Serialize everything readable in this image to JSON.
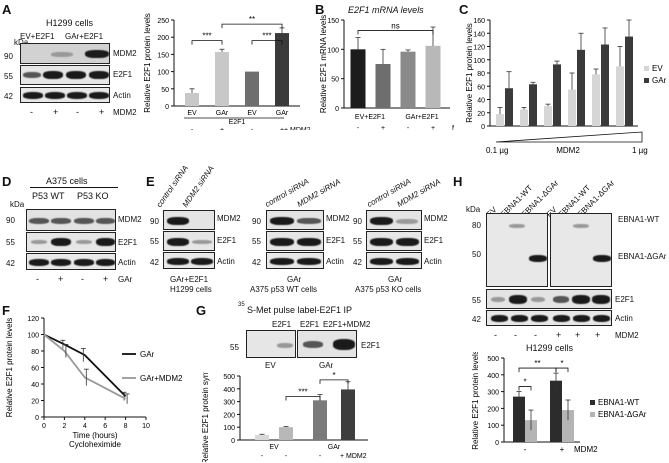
{
  "panels": {
    "A": {
      "letter": "A",
      "kda_unit": "kDa",
      "cell_line": "H1299 cells",
      "lane_groups": [
        "EV+E2F1",
        "GAr+E2F1"
      ],
      "kda_marks": [
        "90",
        "55",
        "42"
      ],
      "band_labels": [
        "MDM2",
        "E2F1",
        "Actin"
      ],
      "lane_signs": [
        "-",
        "+",
        "-",
        "+"
      ],
      "mdm2_label": "MDM2",
      "chart": {
        "ylabel": "Relative E2F1 protein levels",
        "yticks": [
          "0",
          "50",
          "100",
          "150",
          "200",
          "250"
        ],
        "categories": [
          "EV",
          "GAr",
          "EV",
          "GAr"
        ],
        "e2f1_label": "E2F1",
        "signs": [
          "-",
          "+",
          "-",
          "+"
        ],
        "mdm2": "+ MDM2",
        "sig": [
          "***",
          "***",
          "**"
        ]
      }
    },
    "B": {
      "letter": "B",
      "title": "E2F1 mRNA levels",
      "ylabel": "Relative E2F1 mRNA levels",
      "yticks": [
        "0",
        "50",
        "100",
        "150"
      ],
      "groups": [
        "EV+E2F1",
        "GAr+E2F1"
      ],
      "signs": [
        "-",
        "+",
        "-",
        "+"
      ],
      "mdm2": "MDM2",
      "sig": "ns"
    },
    "C": {
      "letter": "C",
      "ylabel": "Relative E2F1 protein levels",
      "yticks": [
        "0",
        "20",
        "40",
        "60",
        "80",
        "100",
        "120",
        "140",
        "160"
      ],
      "legend": [
        "EV",
        "GAr"
      ],
      "x_left": "0.1 µg",
      "x_mid": "MDM2",
      "x_right": "1 µg"
    },
    "D": {
      "letter": "D",
      "kda_unit": "kDa",
      "cell_line": "A375 cells",
      "groups": [
        "P53 WT",
        "P53 KO"
      ],
      "kda_marks": [
        "90",
        "55",
        "42"
      ],
      "band_labels": [
        "MDM2",
        "E2F1",
        "Actin"
      ],
      "signs": [
        "-",
        "+",
        "-",
        "+"
      ],
      "gar": "GAr"
    },
    "E": {
      "letter": "E",
      "blots": [
        {
          "lanes": [
            "control siRNA",
            "MDM2 siRNA"
          ],
          "caption": [
            "GAr+E2F1",
            "H1299 cells"
          ]
        },
        {
          "lanes": [
            "control siRNA",
            "MDM2 siRNA"
          ],
          "caption": [
            "GAr",
            "A375 p53 WT cells"
          ]
        },
        {
          "lanes": [
            "control siRNA",
            "MDM2 siRNA"
          ],
          "caption": [
            "GAr",
            "A375 p53 KO cells"
          ]
        }
      ],
      "kda_marks": [
        "90",
        "55",
        "42"
      ],
      "band_labels": [
        "MDM2",
        "E2F1",
        "Actin"
      ]
    },
    "F": {
      "letter": "F",
      "ylabel": "Relative E2F1 protein levels",
      "xlabel": "Time (hours)",
      "xsub": "Cycloheximide",
      "yticks": [
        "0",
        "20",
        "40",
        "60",
        "80",
        "100",
        "120"
      ],
      "xticks": [
        "0",
        "2",
        "4",
        "6",
        "8",
        "10"
      ],
      "legend": [
        "GAr",
        "GAr+MDM2"
      ]
    },
    "G": {
      "letter": "G",
      "title_sup": "35",
      "title": "S-Met pulse label-E2F1 IP",
      "lanes": [
        "E2F1",
        "E2F1",
        "E2F1+MDM2"
      ],
      "kda": "55",
      "band": "E2F1",
      "groups": [
        "EV",
        "GAr"
      ],
      "chart": {
        "ylabel": "Relative E2F1 protein synthesis",
        "yticks": [
          "0",
          "100",
          "200",
          "300",
          "400",
          "500"
        ],
        "groups": [
          "EV",
          "GAr"
        ],
        "signs": [
          "-",
          "-",
          "-"
        ],
        "mdm2": "+ MDM2",
        "sig": [
          "***",
          "*"
        ]
      }
    },
    "H": {
      "letter": "H",
      "kda_unit": "kDa",
      "lanes": [
        "EV",
        "EBNA1-WT",
        "EBNA1-ΔGAr",
        "EV",
        "EBNA1-WT",
        "EBNA1-ΔGAr"
      ],
      "kda_marks": [
        "80",
        "50",
        "55",
        "42"
      ],
      "band_labels": [
        "EBNA1-WT",
        "EBNA1-ΔGAr",
        "E2F1",
        "Actin"
      ],
      "signs": [
        "-",
        "-",
        "-",
        "+",
        "+",
        "+"
      ],
      "mdm2": "MDM2",
      "cell_line": "H1299 cells",
      "chart": {
        "ylabel": "Relative E2F1 protein levels",
        "yticks": [
          "0",
          "100",
          "200",
          "300",
          "400",
          "500"
        ],
        "signs": [
          "-",
          "+"
        ],
        "mdm2": "MDM2",
        "legend": [
          "EBNA1-WT",
          "EBNA1-ΔGAr"
        ],
        "sig": [
          "*",
          "**",
          "*"
        ]
      }
    }
  },
  "chart_data": [
    {
      "type": "bar",
      "panel": "A",
      "categories": [
        "EV",
        "GAr",
        "EV",
        "GAr"
      ],
      "values": [
        38,
        157,
        100,
        212
      ],
      "errors": [
        12,
        8,
        0,
        15
      ],
      "ylim": [
        0,
        250
      ],
      "ylabel": "Relative E2F1 protein levels",
      "colors": [
        "#c8c8c8",
        "#c8c8c8",
        "#6e6e6e",
        "#3a3a3a"
      ]
    },
    {
      "type": "bar",
      "panel": "B",
      "categories": [
        "EV+E2F1 -",
        "EV+E2F1 +",
        "GAr+E2F1 -",
        "GAr+E2F1 +"
      ],
      "values": [
        100,
        75,
        96,
        106
      ],
      "errors": [
        20,
        25,
        3,
        32
      ],
      "ylim": [
        0,
        150
      ],
      "ylabel": "Relative E2F1 mRNA levels",
      "colors": [
        "#1c1c1c",
        "#6e6e6e",
        "#8a8a8a",
        "#b8b8b8"
      ]
    },
    {
      "type": "bar",
      "panel": "C",
      "categories": [
        "1",
        "2",
        "3",
        "4",
        "5",
        "6"
      ],
      "series": [
        {
          "name": "EV",
          "values": [
            18,
            25,
            30,
            55,
            78,
            90
          ],
          "errors": [
            10,
            3,
            3,
            25,
            8,
            30
          ]
        },
        {
          "name": "GAr",
          "values": [
            57,
            63,
            93,
            115,
            123,
            135
          ],
          "errors": [
            25,
            3,
            5,
            25,
            25,
            25
          ]
        }
      ],
      "ylim": [
        0,
        160
      ],
      "ylabel": "Relative E2F1 protein levels"
    },
    {
      "type": "line",
      "panel": "F",
      "x": [
        0,
        2,
        4,
        8
      ],
      "series": [
        {
          "name": "GAr",
          "values": [
            100,
            88,
            75,
            25
          ],
          "errors": [
            0,
            5,
            8,
            5
          ]
        },
        {
          "name": "GAr+MDM2",
          "values": [
            100,
            80,
            48,
            22
          ],
          "errors": [
            0,
            8,
            10,
            6
          ]
        }
      ],
      "xlim": [
        0,
        10
      ],
      "ylim": [
        0,
        120
      ],
      "xlabel": "Time (hours)",
      "ylabel": "Relative E2F1 protein levels"
    },
    {
      "type": "bar",
      "panel": "G",
      "categories": [
        "EV -",
        "EV +",
        "GAr -",
        "GAr +"
      ],
      "values": [
        40,
        100,
        310,
        395
      ],
      "errors": [
        5,
        5,
        45,
        60
      ],
      "ylim": [
        0,
        500
      ],
      "ylabel": "Relative E2F1 protein synthesis",
      "colors": [
        "#d8d8d8",
        "#b8b8b8",
        "#7a7a7a",
        "#3e3e3e"
      ]
    },
    {
      "type": "bar",
      "panel": "H",
      "categories": [
        "-",
        "+"
      ],
      "series": [
        {
          "name": "EBNA1-WT",
          "values": [
            270,
            365
          ],
          "errors": [
            30,
            45
          ]
        },
        {
          "name": "EBNA1-ΔGAr",
          "values": [
            130,
            190
          ],
          "errors": [
            60,
            60
          ]
        }
      ],
      "ylim": [
        0,
        500
      ],
      "ylabel": "Relative E2F1 protein levels"
    }
  ]
}
